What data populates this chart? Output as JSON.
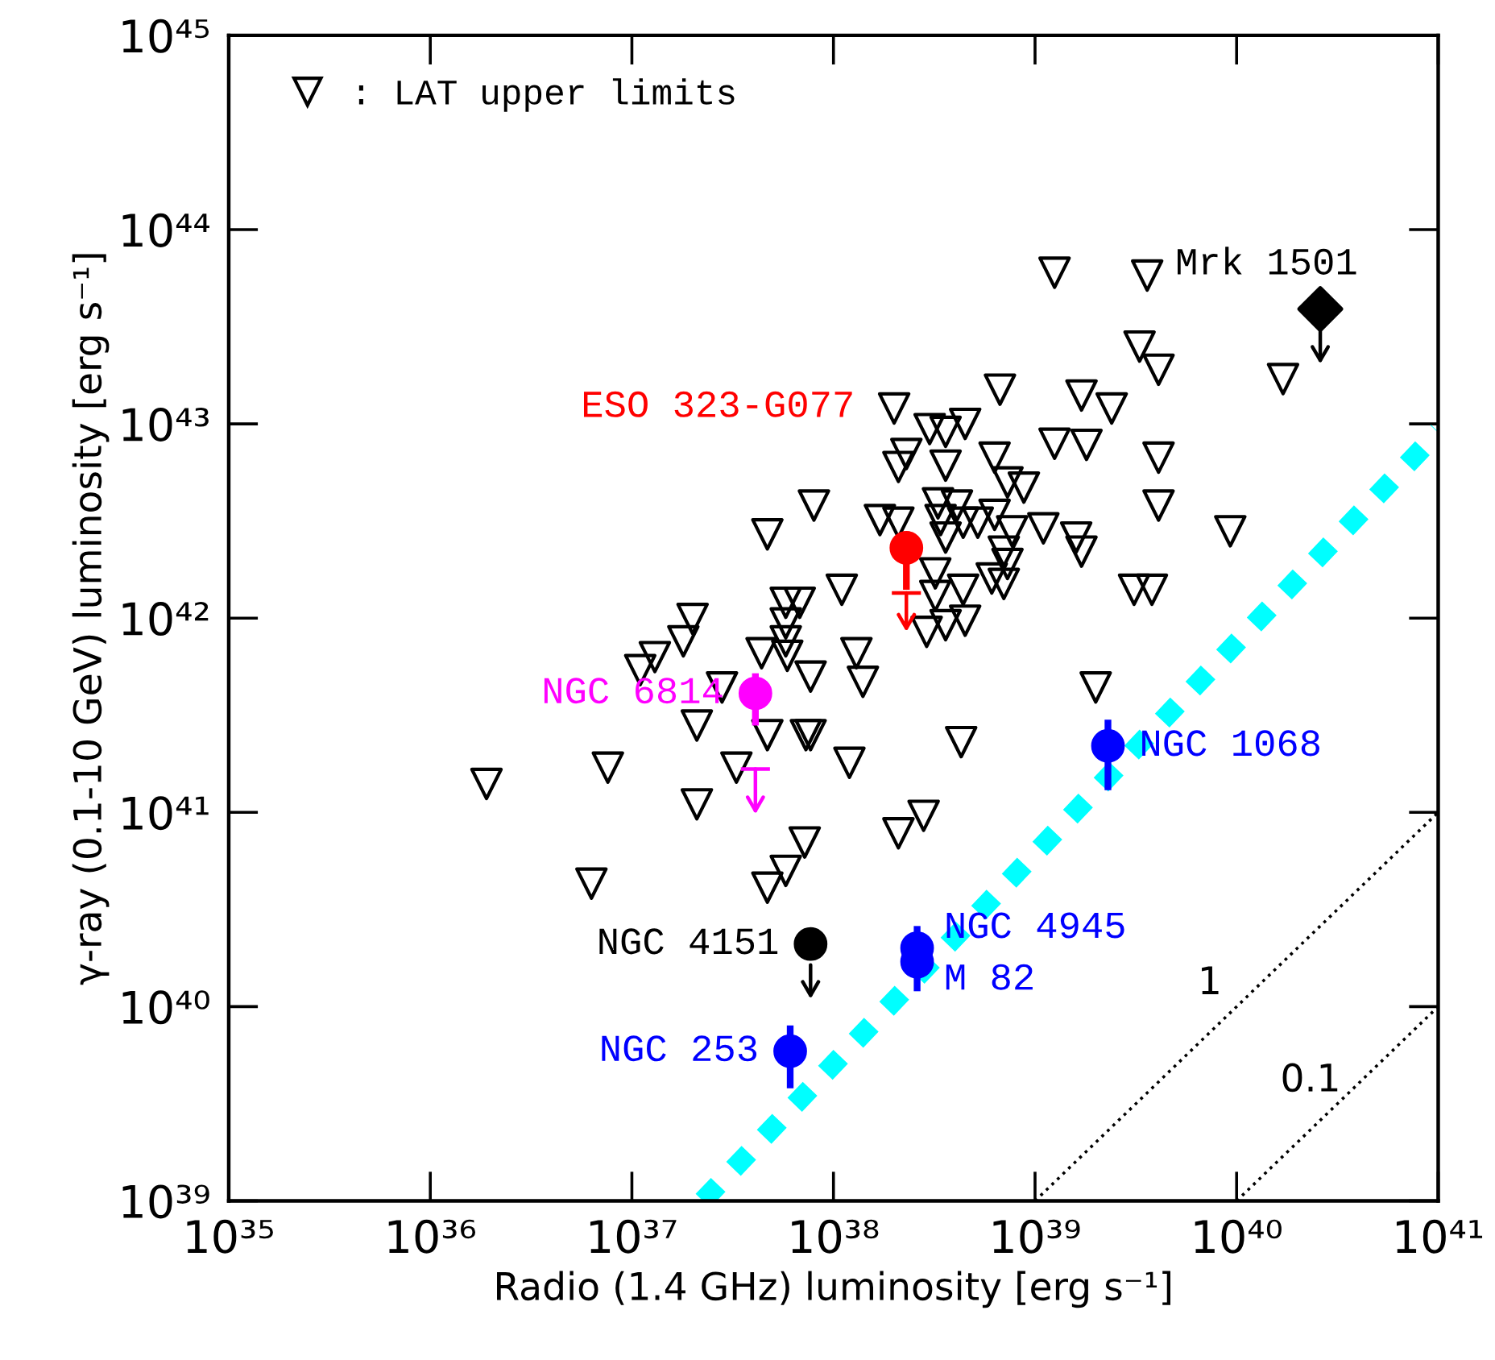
{
  "chart_data": {
    "type": "scatter",
    "xlabel": "Radio (1.4 GHz) luminosity [erg s⁻¹]",
    "ylabel": "γ-ray (0.1-10 GeV) luminosity [erg s⁻¹]",
    "log": "xy",
    "legend": "top left",
    "xlim": [
      1e+35,
      1e+41
    ],
    "ylim": [
      1e+39,
      1e+45
    ],
    "xticks": [
      {
        "value": 1e+35,
        "label": "10³⁵"
      },
      {
        "value": 1e+36,
        "label": "10³⁶"
      },
      {
        "value": 1e+37,
        "label": "10³⁷"
      },
      {
        "value": 1e+38,
        "label": "10³⁸"
      },
      {
        "value": 1e+39,
        "label": "10³⁹"
      },
      {
        "value": 1e+40,
        "label": "10⁴⁰"
      },
      {
        "value": 1e+41,
        "label": "10⁴¹"
      }
    ],
    "yticks": [
      {
        "value": 1e+39,
        "label": "10³⁹"
      },
      {
        "value": 1e+40,
        "label": "10⁴⁰"
      },
      {
        "value": 1e+41,
        "label": "10⁴¹"
      },
      {
        "value": 1e+42,
        "label": "10⁴²"
      },
      {
        "value": 1e+43,
        "label": "10⁴³"
      },
      {
        "value": 1e+44,
        "label": "10⁴⁴"
      },
      {
        "value": 1e+45,
        "label": "10⁴⁵"
      }
    ],
    "series": [
      {
        "name": ": LAT upper limits",
        "color": "#000000",
        "marker": "triangle",
        "x": [
          1.25e+39,
          3.6e+39,
          3.3e+39,
          4.1e+39,
          1.7e+40,
          6.7e+38,
          2e+38,
          1.7e+39,
          2.4e+39,
          4.5e+38,
          3e+38,
          3.6e+38,
          1.25e+39,
          1.8e+39,
          6.3e+38,
          4.1e+39,
          2.3e+38,
          2.1e+38,
          3.6e+38,
          7.3e+38,
          8.8e+38,
          8e+37,
          3.3e+38,
          4.1e+38,
          4.1e+39,
          6.3e+38,
          1.7e+38,
          3.4e+38,
          4.4e+38,
          5.2e+38,
          1.1e+39,
          7.7e+38,
          3.6e+38,
          1.6e+39,
          1.7e+39,
          9.3e+39,
          7e+38,
          7.3e+38,
          3.2e+38,
          6.1e+38,
          1.1e+38,
          3.2e+38,
          4.4e+38,
          7e+38,
          3.1e+39,
          3.8e+39,
          2.9e+38,
          3.6e+38,
          4.5e+38,
          1.3e+38,
          1.4e+38,
          2e+39,
          2.1e+38,
          4.7e+37,
          5.8e+37,
          6.8e+37,
          5.8e+37,
          2e+37,
          1.8e+37,
          1.3e+37,
          1.1e+37,
          5.8e+37,
          5.9e+37,
          4.4e+37,
          7.7e+37,
          2.8e+37,
          2.1e+37,
          4.7e+37,
          7.3e+37,
          7.7e+37,
          1.2e+38,
          4.3e+38,
          7.6e+36,
          1.9e+36,
          3.3e+37,
          2.1e+37,
          2.8e+38,
          2.1e+38,
          7.2e+37,
          5.8e+37,
          4.7e+37,
          6.3e+36
        ],
        "values": [
          6e+43,
          5.8e+43,
          2.5e+43,
          1.9e+43,
          1.7e+43,
          1.5e+43,
          1.2e+43,
          1.4e+43,
          1.2e+43,
          1e+43,
          9.4e+42,
          9.1e+42,
          7.9e+42,
          7.8e+42,
          6.7e+42,
          6.7e+42,
          7e+42,
          6e+42,
          6.1e+42,
          5e+42,
          4.7e+42,
          3.8e+42,
          3.9e+42,
          3.8e+42,
          3.8e+42,
          3.4e+42,
          3.2e+42,
          3.2e+42,
          3.1e+42,
          3.1e+42,
          2.9e+42,
          2.8e+42,
          2.6e+42,
          2.6e+42,
          2.2e+42,
          2.8e+42,
          2.2e+42,
          1.9e+42,
          1.7e+42,
          1.6e+42,
          1.4e+42,
          1.3e+42,
          1.4e+42,
          1.5e+42,
          1.4e+42,
          1.4e+42,
          8.5e+41,
          9.2e+41,
          9.7e+41,
          6.6e+41,
          4.7e+41,
          4.4e+41,
          3.1e+42,
          2.7e+42,
          1.2e+42,
          1.2e+42,
          9.4e+41,
          9.9e+41,
          7.6e+41,
          6.3e+41,
          5.4e+41,
          7.6e+41,
          6.4e+41,
          6.6e+41,
          5e+41,
          4.4e+41,
          2.8e+41,
          2.5e+41,
          2.5e+41,
          2.5e+41,
          1.8e+41,
          2.3e+41,
          1.7e+41,
          1.4e+41,
          1.7e+41,
          1.1e+41,
          9.6e+40,
          7.8e+40,
          7e+40,
          5e+40,
          4.1e+40,
          4.3e+40
        ]
      },
      {
        "type": "line",
        "color": "#00ffff",
        "line_style": "dashed",
        "x": [
          2.25e+37,
          1e+41
        ],
        "values": [
          1e+39,
          9.1e+42
        ]
      },
      {
        "type": "line",
        "name": "1",
        "color": "#000000",
        "line_style": "dotted",
        "x": [
          1e+39,
          1e+41
        ],
        "values": [
          1e+39,
          1e+41
        ]
      },
      {
        "type": "line",
        "name": "0.1",
        "color": "#000000",
        "line_style": "dotted",
        "x": [
          1e+40,
          1e+41
        ],
        "values": [
          1e+39,
          1e+40
        ]
      },
      {
        "name": "Mrk 1501",
        "color": "#000000",
        "marker": "diamond",
        "x": [
          2.6e+40
        ],
        "values": [
          3.9e+43
        ]
      },
      {
        "name": "ESO 323-G077",
        "color": "#ff0000",
        "marker": "circle",
        "x": [
          2.3e+38
        ],
        "values": [
          2.3e+42
        ],
        "errors": [
          [
            1.4e+42,
            2.8e+42
          ]
        ]
      },
      {
        "name": "NGC 6814",
        "color": "#ff00ff",
        "marker": "circle",
        "x": [
          4.1e+37
        ],
        "values": [
          4.1e+41
        ],
        "errors": [
          [
            2.8e+41,
            5.2e+41
          ]
        ]
      },
      {
        "name": "NGC 4151",
        "color": "#000000",
        "marker": "circle",
        "x": [
          7.7e+37
        ],
        "values": [
          2.1e+40
        ]
      },
      {
        "name": "NGC 4945",
        "color": "#0000ff",
        "marker": "circle",
        "x": [
          2.6e+38
        ],
        "values": [
          2e+40
        ],
        "errors": [
          [
            2e+40,
            2.6e+40
          ]
        ]
      },
      {
        "name": "M 82",
        "color": "#0000ff",
        "marker": "circle",
        "x": [
          2.6e+38
        ],
        "values": [
          1.7e+40
        ],
        "errors": [
          [
            1.2e+40,
            1.7e+40
          ]
        ]
      },
      {
        "name": "NGC 253",
        "color": "#0000ff",
        "marker": "circle",
        "x": [
          6.1e+37
        ],
        "values": [
          5.9e+39
        ],
        "errors": [
          [
            3.8e+39,
            8e+39
          ]
        ]
      },
      {
        "name": "NGC 1068",
        "color": "#0000ff",
        "marker": "circle",
        "x": [
          2.3e+39
        ],
        "values": [
          2.2e+41
        ],
        "errors": [
          [
            1.3e+41,
            3e+41
          ]
        ]
      }
    ]
  }
}
